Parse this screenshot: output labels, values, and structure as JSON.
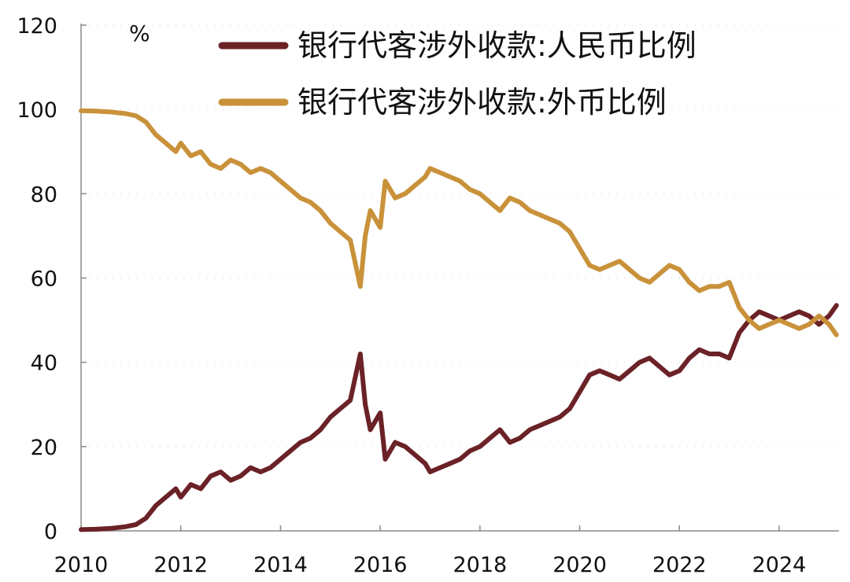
{
  "chart_data": {
    "type": "line",
    "title": "",
    "xlabel": "",
    "ylabel": "",
    "unit_label": "%",
    "xlim": [
      2010,
      2025.2
    ],
    "ylim": [
      0,
      120
    ],
    "x_ticks": [
      2010,
      2012,
      2014,
      2016,
      2018,
      2020,
      2022,
      2024
    ],
    "y_ticks": [
      0,
      20,
      40,
      60,
      80,
      100,
      120
    ],
    "grid": "horizontal-dotted",
    "legend": "top-right",
    "series": [
      {
        "name": "银行代客涉外收款:人民币比例",
        "color": "#6b2227",
        "points": [
          [
            2010.0,
            0.3
          ],
          [
            2010.3,
            0.4
          ],
          [
            2010.6,
            0.6
          ],
          [
            2010.9,
            1.0
          ],
          [
            2011.1,
            1.5
          ],
          [
            2011.3,
            3
          ],
          [
            2011.5,
            6
          ],
          [
            2011.7,
            8
          ],
          [
            2011.9,
            10
          ],
          [
            2012.0,
            8
          ],
          [
            2012.2,
            11
          ],
          [
            2012.4,
            10
          ],
          [
            2012.6,
            13
          ],
          [
            2012.8,
            14
          ],
          [
            2013.0,
            12
          ],
          [
            2013.2,
            13
          ],
          [
            2013.4,
            15
          ],
          [
            2013.6,
            14
          ],
          [
            2013.8,
            15
          ],
          [
            2014.0,
            17
          ],
          [
            2014.2,
            19
          ],
          [
            2014.4,
            21
          ],
          [
            2014.6,
            22
          ],
          [
            2014.8,
            24
          ],
          [
            2015.0,
            27
          ],
          [
            2015.2,
            29
          ],
          [
            2015.4,
            31
          ],
          [
            2015.6,
            42
          ],
          [
            2015.7,
            30
          ],
          [
            2015.8,
            24
          ],
          [
            2016.0,
            28
          ],
          [
            2016.1,
            17
          ],
          [
            2016.3,
            21
          ],
          [
            2016.5,
            20
          ],
          [
            2016.7,
            18
          ],
          [
            2016.9,
            16
          ],
          [
            2017.0,
            14
          ],
          [
            2017.2,
            15
          ],
          [
            2017.4,
            16
          ],
          [
            2017.6,
            17
          ],
          [
            2017.8,
            19
          ],
          [
            2018.0,
            20
          ],
          [
            2018.2,
            22
          ],
          [
            2018.4,
            24
          ],
          [
            2018.6,
            21
          ],
          [
            2018.8,
            22
          ],
          [
            2019.0,
            24
          ],
          [
            2019.2,
            25
          ],
          [
            2019.4,
            26
          ],
          [
            2019.6,
            27
          ],
          [
            2019.8,
            29
          ],
          [
            2020.0,
            33
          ],
          [
            2020.2,
            37
          ],
          [
            2020.4,
            38
          ],
          [
            2020.6,
            37
          ],
          [
            2020.8,
            36
          ],
          [
            2021.0,
            38
          ],
          [
            2021.2,
            40
          ],
          [
            2021.4,
            41
          ],
          [
            2021.6,
            39
          ],
          [
            2021.8,
            37
          ],
          [
            2022.0,
            38
          ],
          [
            2022.2,
            41
          ],
          [
            2022.4,
            43
          ],
          [
            2022.6,
            42
          ],
          [
            2022.8,
            42
          ],
          [
            2023.0,
            41
          ],
          [
            2023.2,
            47
          ],
          [
            2023.4,
            50
          ],
          [
            2023.6,
            52
          ],
          [
            2023.8,
            51
          ],
          [
            2024.0,
            50
          ],
          [
            2024.2,
            51
          ],
          [
            2024.4,
            52
          ],
          [
            2024.6,
            51
          ],
          [
            2024.8,
            49
          ],
          [
            2025.0,
            51
          ],
          [
            2025.15,
            53.5
          ]
        ]
      },
      {
        "name": "银行代客涉外收款:外币比例",
        "color": "#c9923a",
        "points": [
          [
            2010.0,
            99.7
          ],
          [
            2010.3,
            99.6
          ],
          [
            2010.6,
            99.4
          ],
          [
            2010.9,
            99.0
          ],
          [
            2011.1,
            98.5
          ],
          [
            2011.3,
            97
          ],
          [
            2011.5,
            94
          ],
          [
            2011.7,
            92
          ],
          [
            2011.9,
            90
          ],
          [
            2012.0,
            92
          ],
          [
            2012.2,
            89
          ],
          [
            2012.4,
            90
          ],
          [
            2012.6,
            87
          ],
          [
            2012.8,
            86
          ],
          [
            2013.0,
            88
          ],
          [
            2013.2,
            87
          ],
          [
            2013.4,
            85
          ],
          [
            2013.6,
            86
          ],
          [
            2013.8,
            85
          ],
          [
            2014.0,
            83
          ],
          [
            2014.2,
            81
          ],
          [
            2014.4,
            79
          ],
          [
            2014.6,
            78
          ],
          [
            2014.8,
            76
          ],
          [
            2015.0,
            73
          ],
          [
            2015.2,
            71
          ],
          [
            2015.4,
            69
          ],
          [
            2015.6,
            58
          ],
          [
            2015.7,
            70
          ],
          [
            2015.8,
            76
          ],
          [
            2016.0,
            72
          ],
          [
            2016.1,
            83
          ],
          [
            2016.3,
            79
          ],
          [
            2016.5,
            80
          ],
          [
            2016.7,
            82
          ],
          [
            2016.9,
            84
          ],
          [
            2017.0,
            86
          ],
          [
            2017.2,
            85
          ],
          [
            2017.4,
            84
          ],
          [
            2017.6,
            83
          ],
          [
            2017.8,
            81
          ],
          [
            2018.0,
            80
          ],
          [
            2018.2,
            78
          ],
          [
            2018.4,
            76
          ],
          [
            2018.6,
            79
          ],
          [
            2018.8,
            78
          ],
          [
            2019.0,
            76
          ],
          [
            2019.2,
            75
          ],
          [
            2019.4,
            74
          ],
          [
            2019.6,
            73
          ],
          [
            2019.8,
            71
          ],
          [
            2020.0,
            67
          ],
          [
            2020.2,
            63
          ],
          [
            2020.4,
            62
          ],
          [
            2020.6,
            63
          ],
          [
            2020.8,
            64
          ],
          [
            2021.0,
            62
          ],
          [
            2021.2,
            60
          ],
          [
            2021.4,
            59
          ],
          [
            2021.6,
            61
          ],
          [
            2021.8,
            63
          ],
          [
            2022.0,
            62
          ],
          [
            2022.2,
            59
          ],
          [
            2022.4,
            57
          ],
          [
            2022.6,
            58
          ],
          [
            2022.8,
            58
          ],
          [
            2023.0,
            59
          ],
          [
            2023.2,
            53
          ],
          [
            2023.4,
            50
          ],
          [
            2023.6,
            48
          ],
          [
            2023.8,
            49
          ],
          [
            2024.0,
            50
          ],
          [
            2024.2,
            49
          ],
          [
            2024.4,
            48
          ],
          [
            2024.6,
            49
          ],
          [
            2024.8,
            51
          ],
          [
            2025.0,
            49
          ],
          [
            2025.15,
            46.5
          ]
        ]
      }
    ]
  }
}
